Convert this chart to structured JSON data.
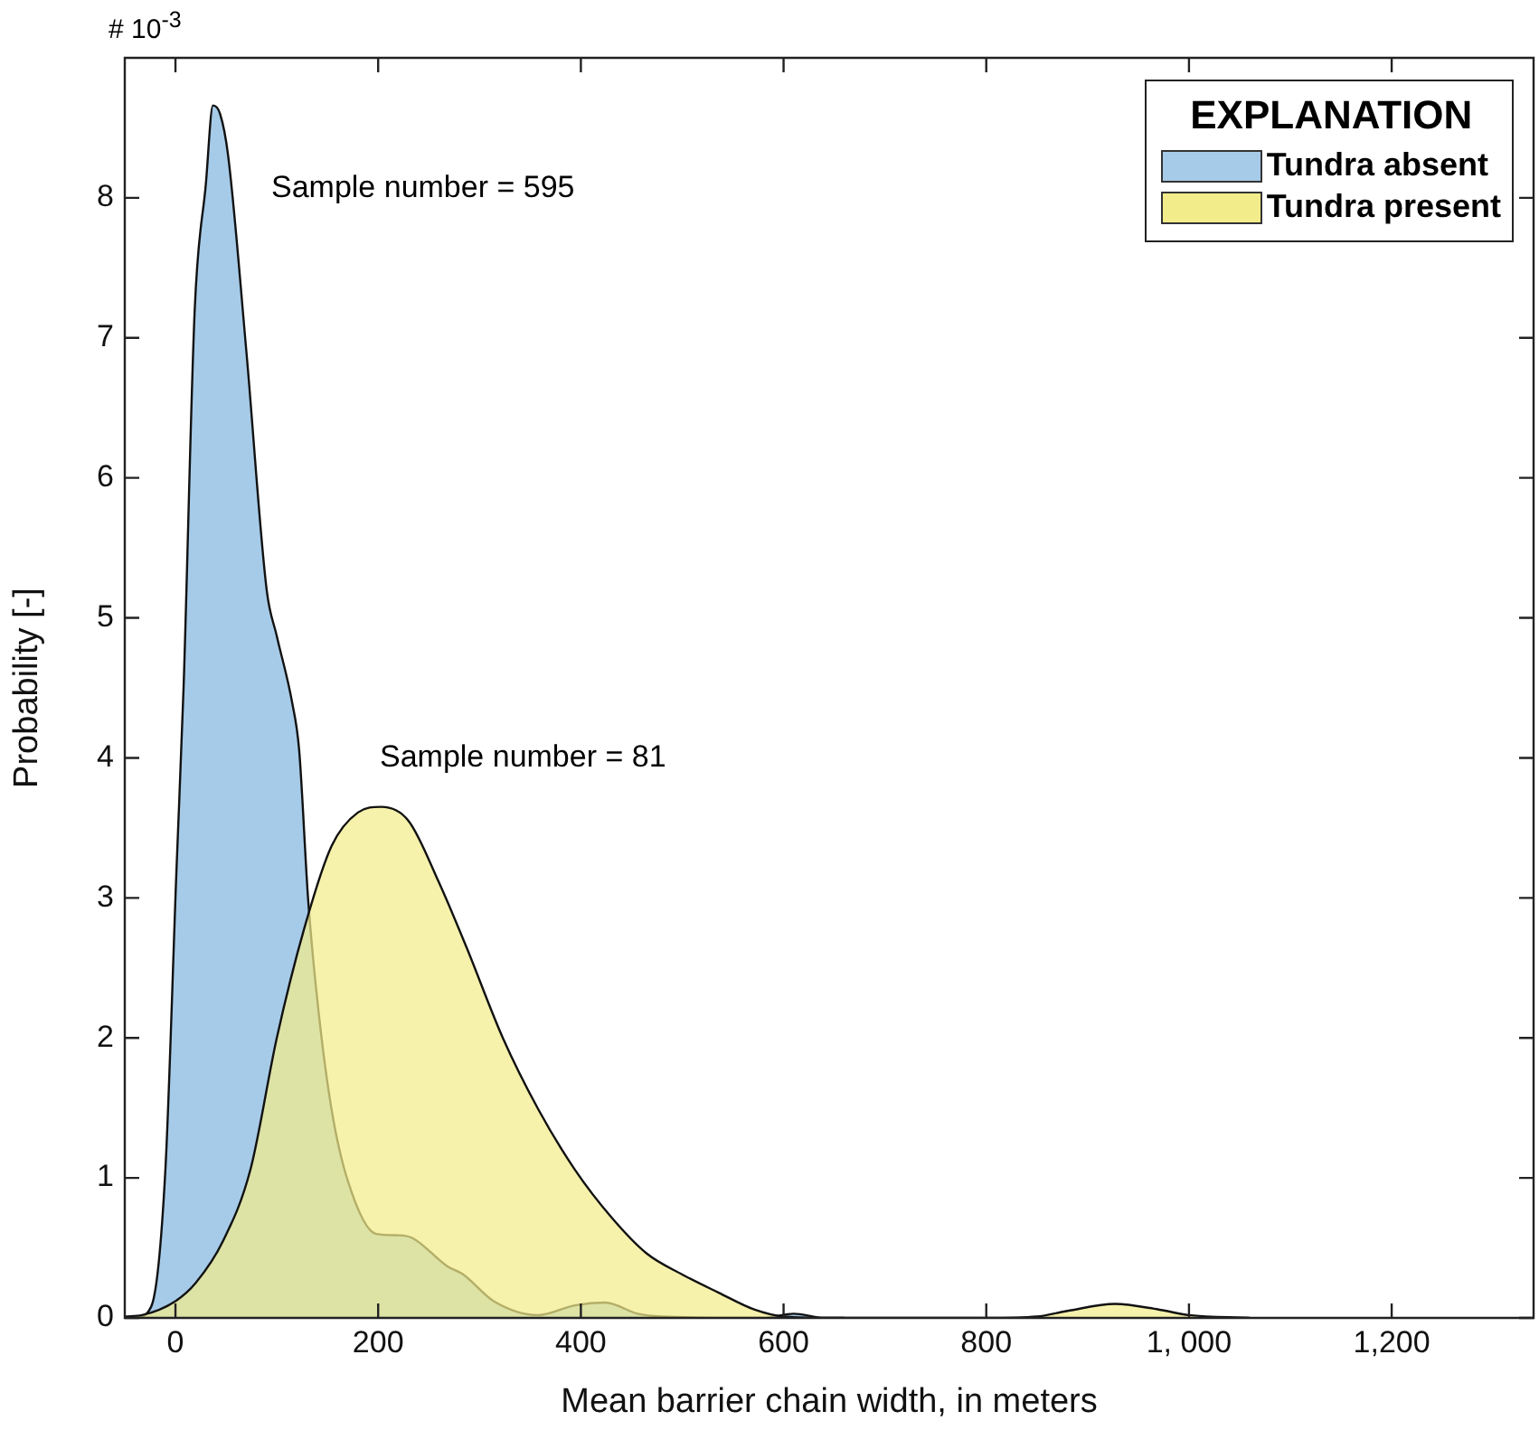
{
  "chart_data": {
    "type": "area",
    "xlabel": "Mean barrier chain width, in meters",
    "ylabel": "Probability [-]",
    "legend_title": "EXPLANATION",
    "legend": "top right",
    "grid": false,
    "xlim": [
      -50,
      1340
    ],
    "xticks": [
      0,
      200,
      400,
      600,
      800,
      {
        "value": 1000,
        "label": "1, 000"
      },
      {
        "value": 1200,
        "label": "1,200"
      }
    ],
    "ylim": [
      0,
      9
    ],
    "yticks": [
      0,
      1,
      2,
      3,
      4,
      5,
      6,
      7,
      8
    ],
    "annotations": [
      "# 10$^{-3}$",
      "Sample number = 595",
      "Sample number = 81"
    ],
    "series": [
      {
        "name": "Tundra absent",
        "color": "#a6cbe8",
        "x": [
          -50,
          -40,
          -24,
          -10,
          1,
          8,
          19,
          30,
          37,
          44,
          52,
          70,
          90,
          100,
          115,
          122,
          131,
          141,
          154,
          170,
          198,
          221,
          234,
          268,
          284,
          314,
          358,
          394,
          424,
          456,
          480,
          580,
          610,
          640,
          660
        ],
        "values": [
          0,
          0,
          0.08,
          1.05,
          3.2,
          4.5,
          7.2,
          8.1,
          8.66,
          8.6,
          8.3,
          6.9,
          5.2,
          4.87,
          4.4,
          4.06,
          2.98,
          2.2,
          1.49,
          0.98,
          0.6,
          0.59,
          0.57,
          0.37,
          0.31,
          0.12,
          0.02,
          0.09,
          0.11,
          0.03,
          0.01,
          0,
          0.03,
          0,
          0
        ]
      },
      {
        "name": "Tundra present",
        "color": "#f2ec8a",
        "x": [
          -50,
          -33,
          0,
          20,
          47,
          74,
          100,
          127,
          154,
          180,
          203,
          230,
          260,
          287,
          323,
          358,
          394,
          430,
          465,
          500,
          536,
          571,
          600,
          650,
          800,
          850,
          880,
          927,
          970,
          1000,
          1060
        ],
        "values": [
          0.01,
          0.02,
          0.12,
          0.25,
          0.55,
          1.06,
          2.0,
          2.78,
          3.37,
          3.61,
          3.65,
          3.55,
          3.11,
          2.65,
          2.0,
          1.49,
          1.06,
          0.72,
          0.46,
          0.31,
          0.18,
          0.06,
          0.01,
          0,
          0,
          0.01,
          0.05,
          0.1,
          0.06,
          0.02,
          0
        ]
      }
    ]
  }
}
